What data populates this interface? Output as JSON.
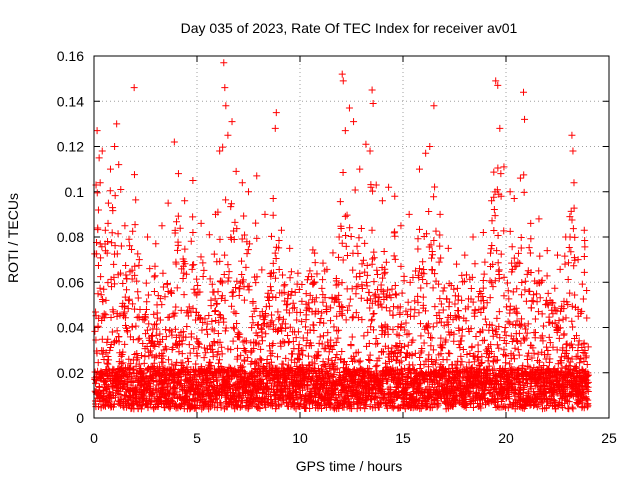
{
  "chart_data": {
    "type": "scatter",
    "title": "Day 035 of 2023, Rate Of TEC Index for receiver av01",
    "xlabel": "GPS time / hours",
    "ylabel": "ROTI / TECUs",
    "xlim": [
      0,
      25
    ],
    "ylim": [
      0,
      0.16
    ],
    "x_ticks": [
      0,
      5,
      10,
      15,
      20,
      25
    ],
    "y_ticks": [
      0,
      0.02,
      0.04,
      0.06,
      0.08,
      0.1,
      0.12,
      0.14,
      0.16
    ],
    "x_tick_labels": [
      "0",
      "5",
      "10",
      "15",
      "20",
      "25"
    ],
    "y_tick_labels": [
      "0",
      "0.02",
      "0.04",
      "0.06",
      "0.08",
      "0.1",
      "0.12",
      "0.14",
      "0.16"
    ],
    "grid": true,
    "marker": "+",
    "color": "#ff0000",
    "series": [
      {
        "name": "",
        "points": [
          [
            0.1,
            0.103
          ],
          [
            0.15,
            0.127
          ],
          [
            0.25,
            0.115
          ],
          [
            0.3,
            0.104
          ],
          [
            0.4,
            0.118
          ],
          [
            0.55,
            0.083
          ],
          [
            0.7,
            0.095
          ],
          [
            0.8,
            0.11
          ],
          [
            0.9,
            0.093
          ],
          [
            1.0,
            0.12
          ],
          [
            1.1,
            0.13
          ],
          [
            1.2,
            0.112
          ],
          [
            1.3,
            0.101
          ],
          [
            1.5,
            0.085
          ],
          [
            1.7,
            0.079
          ],
          [
            1.95,
            0.146
          ],
          [
            2.2,
            0.07
          ],
          [
            2.6,
            0.08
          ],
          [
            3.0,
            0.077
          ],
          [
            3.3,
            0.085
          ],
          [
            3.6,
            0.095
          ],
          [
            3.9,
            0.122
          ],
          [
            4.1,
            0.108
          ],
          [
            4.4,
            0.096
          ],
          [
            4.8,
            0.105
          ],
          [
            5.2,
            0.086
          ],
          [
            5.6,
            0.081
          ],
          [
            5.9,
            0.09
          ],
          [
            6.1,
            0.118
          ],
          [
            6.3,
            0.157
          ],
          [
            6.35,
            0.146
          ],
          [
            6.4,
            0.138
          ],
          [
            6.5,
            0.125
          ],
          [
            6.7,
            0.131
          ],
          [
            6.9,
            0.109
          ],
          [
            7.2,
            0.104
          ],
          [
            7.5,
            0.1
          ],
          [
            7.9,
            0.107
          ],
          [
            8.3,
            0.09
          ],
          [
            8.7,
            0.097
          ],
          [
            8.8,
            0.128
          ],
          [
            8.85,
            0.135
          ],
          [
            9.1,
            0.083
          ],
          [
            9.5,
            0.075
          ],
          [
            9.9,
            0.064
          ],
          [
            10.3,
            0.055
          ],
          [
            10.7,
            0.06
          ],
          [
            11.2,
            0.065
          ],
          [
            11.6,
            0.073
          ],
          [
            11.9,
            0.08
          ],
          [
            12.05,
            0.152
          ],
          [
            12.1,
            0.149
          ],
          [
            12.2,
            0.127
          ],
          [
            12.4,
            0.137
          ],
          [
            12.6,
            0.131
          ],
          [
            12.9,
            0.11
          ],
          [
            13.2,
            0.121
          ],
          [
            13.4,
            0.118
          ],
          [
            13.5,
            0.145
          ],
          [
            13.55,
            0.139
          ],
          [
            13.7,
            0.103
          ],
          [
            14.0,
            0.096
          ],
          [
            14.3,
            0.102
          ],
          [
            14.6,
            0.098
          ],
          [
            14.9,
            0.085
          ],
          [
            15.3,
            0.09
          ],
          [
            15.8,
            0.11
          ],
          [
            16.1,
            0.117
          ],
          [
            16.3,
            0.12
          ],
          [
            16.5,
            0.138
          ],
          [
            16.8,
            0.09
          ],
          [
            17.2,
            0.075
          ],
          [
            17.6,
            0.068
          ],
          [
            18.0,
            0.072
          ],
          [
            18.4,
            0.08
          ],
          [
            18.9,
            0.082
          ],
          [
            19.3,
            0.096
          ],
          [
            19.5,
            0.149
          ],
          [
            19.6,
            0.147
          ],
          [
            19.7,
            0.128
          ],
          [
            19.75,
            0.108
          ],
          [
            19.9,
            0.111
          ],
          [
            20.2,
            0.1
          ],
          [
            20.4,
            0.097
          ],
          [
            20.7,
            0.106
          ],
          [
            20.85,
            0.144
          ],
          [
            20.9,
            0.132
          ],
          [
            21.2,
            0.086
          ],
          [
            21.6,
            0.088
          ],
          [
            22.0,
            0.074
          ],
          [
            22.5,
            0.072
          ],
          [
            22.9,
            0.08
          ],
          [
            23.1,
            0.089
          ],
          [
            23.2,
            0.125
          ],
          [
            23.25,
            0.118
          ],
          [
            23.3,
            0.104
          ],
          [
            23.5,
            0.07
          ],
          [
            23.8,
            0.083
          ]
        ]
      }
    ]
  }
}
